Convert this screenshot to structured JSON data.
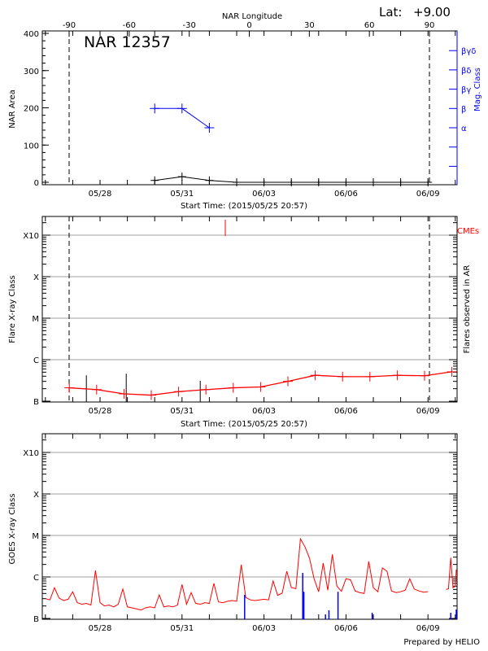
{
  "header": {
    "lat_label": "Lat:",
    "lat_value": "+9.00",
    "prepared_by": "Prepared by HELIO"
  },
  "colors": {
    "axis": "#000000",
    "mag_class": "#0000ff",
    "flare": "#ff0000",
    "cme": "#ff0000",
    "grid": "#a0a0a0",
    "goes": "#ff0000",
    "ar_flare": "#0000ff"
  },
  "chart_data": [
    {
      "type": "line",
      "title": "NAR 12357",
      "xlabel": "Start Time: (2015/05/25 20:57)",
      "x2label": "NAR Longitude",
      "ylabel": "NAR Area",
      "y2label": "Mag. Class",
      "ylim": [
        0,
        400
      ],
      "yticks": [
        "0",
        "100",
        "200",
        "300",
        "400"
      ],
      "xticks": [
        "05/28",
        "05/31",
        "06/03",
        "06/06",
        "06/09"
      ],
      "x2lim": [
        -90,
        90
      ],
      "x2ticks": [
        "-90",
        "-60",
        "-30",
        "0",
        "30",
        "60",
        "90"
      ],
      "limb_longitudes": [
        -90,
        90
      ],
      "area": {
        "dates": [
          "2015-05-30 00:00",
          "2015-05-31 00:00",
          "2015-06-01 00:00",
          "2015-06-02 00:00",
          "2015-06-03 00:00",
          "2015-06-04 00:00",
          "2015-06-05 00:00",
          "2015-06-06 00:00",
          "2015-06-07 00:00",
          "2015-06-08 00:00",
          "2015-06-09 00:00"
        ],
        "values": [
          5,
          15,
          5,
          0,
          0,
          0,
          0,
          0,
          0,
          0,
          0
        ]
      },
      "mag_class_ticks": [
        "α",
        "β",
        "βγ",
        "βδ",
        "βγδ"
      ],
      "mag_class": {
        "dates": [
          "2015-05-30 00:00",
          "2015-05-31 00:00",
          "2015-06-01 00:00"
        ],
        "values": [
          "β",
          "β",
          "α"
        ]
      }
    },
    {
      "type": "line",
      "xlabel": "Start Time: (2015/05/25 20:57)",
      "ylabel": "Flare X-ray Class",
      "y2label": "Flares observed in AR",
      "cme_label": "CMEs",
      "yscale": "log",
      "ylim": [
        1e-07,
        0.0032
      ],
      "yticks": [
        "B",
        "C",
        "M",
        "X",
        "X10"
      ],
      "xticks": [
        "05/28",
        "05/31",
        "06/03",
        "06/06",
        "06/09"
      ],
      "grid": true,
      "limb_longitudes": [
        -90,
        90
      ],
      "flare_class": {
        "dates": [
          "2015-05-26 21:00",
          "2015-05-27 21:00",
          "2015-05-28 21:00",
          "2015-05-29 21:00",
          "2015-05-30 21:00",
          "2015-05-31 21:00",
          "2015-06-01 21:00",
          "2015-06-02 21:00",
          "2015-06-03 21:00",
          "2015-06-04 21:00",
          "2015-06-05 21:00",
          "2015-06-06 21:00",
          "2015-06-07 21:00",
          "2015-06-08 21:00",
          "2015-06-09 21:00"
        ],
        "values": [
          2.1e-07,
          1.9e-07,
          1.5e-07,
          1.4e-07,
          1.7e-07,
          1.9e-07,
          2.1e-07,
          2.2e-07,
          3e-07,
          4.2e-07,
          3.9e-07,
          3.9e-07,
          4.2e-07,
          4.1e-07,
          5.1e-07
        ]
      },
      "observed_flares": {
        "dates": [
          "2015-05-27 12:00",
          "2015-05-28 23:00",
          "2015-05-31 16:00"
        ],
        "values": [
          4.2e-07,
          4.6e-07,
          3.1e-07
        ]
      },
      "cmes": {
        "dates": [
          "2015-06-01 14:00"
        ]
      }
    },
    {
      "type": "line",
      "ylabel": "GOES X-ray Class",
      "yscale": "log",
      "ylim": [
        1e-07,
        0.0032
      ],
      "yticks": [
        "B",
        "C",
        "M",
        "X",
        "X10"
      ],
      "xticks": [
        "05/28",
        "05/31",
        "06/03",
        "06/06",
        "06/09"
      ],
      "grid": true,
      "goes_flux": [
        {
          "start": "2015-05-26 00:00",
          "step_hours": 4,
          "values": [
            3e-07,
            2.8e-07,
            5.5e-07,
            3.1e-07,
            2.7e-07,
            2.9e-07,
            4.4e-07,
            2.4e-07,
            2.2e-07,
            2.3e-07,
            2.1e-07,
            1.43e-06,
            2.4e-07,
            2e-07,
            2.1e-07,
            1.9e-07,
            2.2e-07,
            5.1e-07,
            1.9e-07,
            1.8e-07,
            1.7e-07,
            1.6e-07,
            1.8e-07,
            1.9e-07,
            1.8e-07,
            3.7e-07,
            1.9e-07,
            2e-07,
            1.9e-07,
            2.1e-07,
            6.6e-07,
            2.2e-07,
            4.2e-07,
            2.3e-07,
            2.2e-07,
            2.4e-07,
            2.3e-07,
            7e-07,
            2.5e-07,
            2.4e-07,
            2.6e-07,
            2.7e-07,
            2.6e-07,
            1.97e-06,
            3.2e-07,
            2.8e-07,
            2.7e-07,
            2.8e-07,
            2.9e-07,
            2.8e-07,
            8e-07,
            3.6e-07,
            4.1e-07,
            1.37e-06,
            5.6e-07,
            5.2e-07,
            8.3e-06,
            5.3e-06,
            2.8e-06,
            9e-07,
            4.4e-07,
            2.16e-06,
            4.8e-07,
            3.5e-06,
            6e-07,
            4.5e-07,
            9.1e-07,
            8.5e-07,
            4.6e-07,
            4.2e-07,
            4e-07,
            2.36e-06,
            5.5e-07,
            4.4e-07,
            1.64e-06,
            1.37e-06,
            4.6e-07,
            4.2e-07,
            4.4e-07,
            4.8e-07,
            9e-07,
            5.1e-07,
            4.6e-07,
            4.3e-07,
            4.4e-07
          ]
        },
        {
          "start": "2015-06-09 16:00",
          "step_hours": 2,
          "values": [
            5e-07,
            5.2e-07,
            2.9e-06,
            5.5e-07,
            6e-07,
            1.5e-06
          ]
        }
      ],
      "ar_flares": {
        "dates": [
          "2015-06-02 07:00",
          "2015-06-04 10:00",
          "2015-06-04 11:00",
          "2015-06-05 06:00",
          "2015-06-05 09:00",
          "2015-06-05 17:00",
          "2015-06-06 23:00",
          "2015-06-09 20:00",
          "2015-06-10 01:00"
        ],
        "values": [
          3.7e-07,
          1.25e-06,
          4.4e-07,
          1.25e-07,
          1.57e-07,
          4.4e-07,
          1.37e-07,
          1.37e-07,
          1.64e-07
        ]
      }
    }
  ]
}
